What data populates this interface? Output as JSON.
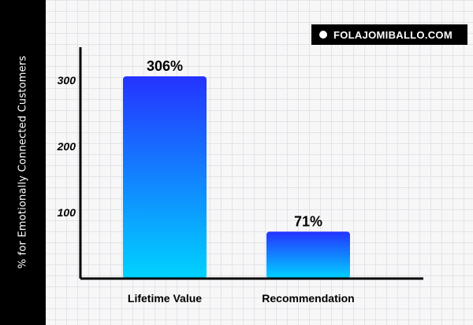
{
  "brand": {
    "text": "FOLAJOMIBALLO.COM"
  },
  "chart_data": {
    "type": "bar",
    "categories": [
      "Lifetime Value",
      "Recommendation"
    ],
    "values": [
      306,
      71
    ],
    "data_labels": [
      "306%",
      "71%"
    ],
    "title": "",
    "xlabel": "",
    "ylabel": "% for Emotionally Connected Customers",
    "ylim": [
      0,
      350
    ],
    "yticks": [
      100,
      200,
      300
    ],
    "ytick_labels": [
      "100",
      "200",
      "300"
    ],
    "grid": true,
    "colors": {
      "bar_top": "#2433ff",
      "bar_bottom": "#00d3ff"
    }
  }
}
